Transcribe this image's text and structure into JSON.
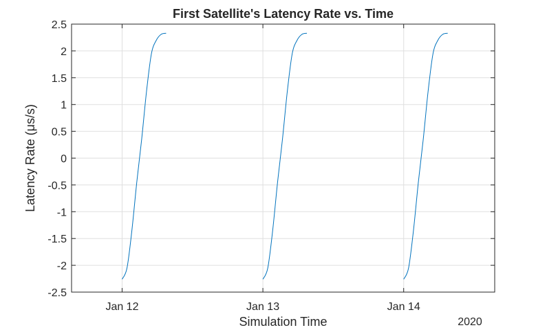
{
  "chart_data": {
    "type": "line",
    "title": "First Satellite's Latency Rate vs. Time",
    "xlabel": "Simulation Time",
    "ylabel": "Latency  Rate  (μs/s)",
    "x_secondary_label": "2020",
    "x_axis_kind": "date",
    "xlim": [
      "2020-01-11 15:23",
      "2020-01-14 15:31"
    ],
    "ylim": [
      -2.5,
      2.5
    ],
    "x_ticks": [
      {
        "value": "2020-01-12 00:00",
        "label": "Jan 12"
      },
      {
        "value": "2020-01-13 00:00",
        "label": "Jan 13"
      },
      {
        "value": "2020-01-14 00:00",
        "label": "Jan 14"
      }
    ],
    "y_ticks": [
      {
        "value": 2.5,
        "label": "2.5"
      },
      {
        "value": 2,
        "label": "2"
      },
      {
        "value": 1.5,
        "label": "1.5"
      },
      {
        "value": 1,
        "label": "1"
      },
      {
        "value": 0.5,
        "label": "0.5"
      },
      {
        "value": 0,
        "label": "0"
      },
      {
        "value": -0.5,
        "label": "-0.5"
      },
      {
        "value": -1,
        "label": "-1"
      },
      {
        "value": -1.5,
        "label": "-1.5"
      },
      {
        "value": -2,
        "label": "-2"
      },
      {
        "value": -2.5,
        "label": "-2.5"
      }
    ],
    "grid": true,
    "legend": "none",
    "series_color": "#0072bd",
    "series": [
      {
        "x": [
          "2020-01-12 00:00",
          "2020-01-12 00:50",
          "2020-01-12 01:40",
          "2020-01-12 02:30",
          "2020-01-12 03:20",
          "2020-01-12 04:10",
          "2020-01-12 05:00",
          "2020-01-12 05:50",
          "2020-01-12 06:40",
          "2020-01-12 07:30"
        ],
        "y": [
          -2.26,
          -2.05,
          -1.35,
          -0.45,
          0.35,
          1.25,
          1.95,
          2.2,
          2.31,
          2.33
        ]
      },
      {
        "x": [
          "2020-01-13 00:00",
          "2020-01-13 00:50",
          "2020-01-13 01:40",
          "2020-01-13 02:30",
          "2020-01-13 03:20",
          "2020-01-13 04:10",
          "2020-01-13 05:00",
          "2020-01-13 05:50",
          "2020-01-13 06:40",
          "2020-01-13 07:30"
        ],
        "y": [
          -2.26,
          -2.05,
          -1.35,
          -0.45,
          0.35,
          1.25,
          1.95,
          2.2,
          2.31,
          2.33
        ]
      },
      {
        "x": [
          "2020-01-14 00:00",
          "2020-01-14 00:50",
          "2020-01-14 01:40",
          "2020-01-14 02:30",
          "2020-01-14 03:20",
          "2020-01-14 04:10",
          "2020-01-14 05:00",
          "2020-01-14 05:50",
          "2020-01-14 06:40",
          "2020-01-14 07:30"
        ],
        "y": [
          -2.26,
          -2.05,
          -1.35,
          -0.45,
          0.35,
          1.25,
          1.95,
          2.2,
          2.31,
          2.33
        ]
      }
    ]
  }
}
